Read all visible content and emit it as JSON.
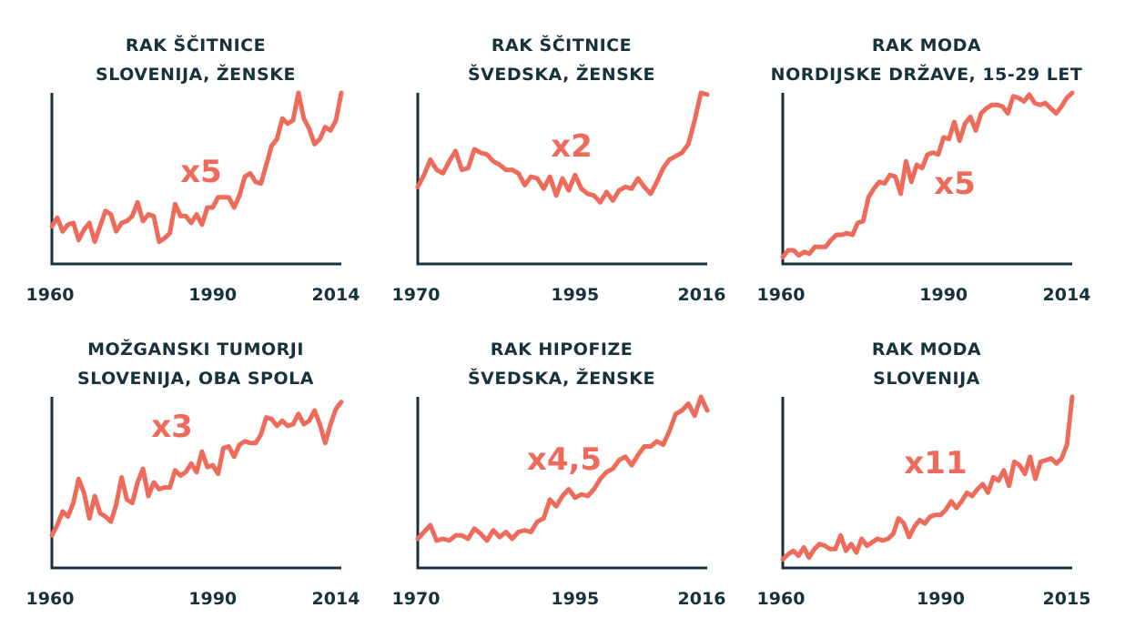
{
  "colors": {
    "line": "#ee6a5a",
    "axis": "#17323b",
    "text": "#17323b"
  },
  "chart_data": [
    {
      "type": "line",
      "title_lines": [
        "RAK ŠČITNICE",
        "SLOVENIJA, ŽENSKE"
      ],
      "xticks": [
        "1960",
        "1990",
        "2014"
      ],
      "xlim": [
        1960,
        2014
      ],
      "ylim": [
        0,
        1
      ],
      "annotation": "x5",
      "x": [
        1960,
        1961,
        1962,
        1963,
        1964,
        1965,
        1966,
        1967,
        1968,
        1969,
        1970,
        1971,
        1972,
        1973,
        1974,
        1975,
        1976,
        1977,
        1978,
        1979,
        1980,
        1981,
        1982,
        1983,
        1984,
        1985,
        1986,
        1987,
        1988,
        1989,
        1990,
        1991,
        1992,
        1993,
        1994,
        1995,
        1996,
        1997,
        1998,
        1999,
        2000,
        2001,
        2002,
        2003,
        2004,
        2005,
        2006,
        2007,
        2008,
        2009,
        2010,
        2011,
        2012,
        2013,
        2014
      ],
      "values": [
        0.22,
        0.27,
        0.19,
        0.23,
        0.24,
        0.14,
        0.2,
        0.24,
        0.13,
        0.22,
        0.31,
        0.29,
        0.19,
        0.24,
        0.25,
        0.28,
        0.36,
        0.25,
        0.29,
        0.28,
        0.13,
        0.15,
        0.18,
        0.35,
        0.28,
        0.28,
        0.24,
        0.29,
        0.23,
        0.33,
        0.33,
        0.39,
        0.39,
        0.39,
        0.33,
        0.4,
        0.51,
        0.53,
        0.48,
        0.47,
        0.58,
        0.69,
        0.73,
        0.85,
        0.82,
        0.84,
        1.0,
        0.85,
        0.79,
        0.7,
        0.73,
        0.8,
        0.78,
        0.84,
        1.0
      ]
    },
    {
      "type": "line",
      "title_lines": [
        "RAK ŠČITNICE",
        "ŠVEDSKA, ŽENSKE"
      ],
      "xticks": [
        "1970",
        "1995",
        "2016"
      ],
      "xlim": [
        1970,
        2016
      ],
      "ylim": [
        0,
        1
      ],
      "annotation": "x2",
      "x": [
        1970,
        1971,
        1972,
        1973,
        1974,
        1975,
        1976,
        1977,
        1978,
        1979,
        1980,
        1981,
        1982,
        1983,
        1984,
        1985,
        1986,
        1987,
        1988,
        1989,
        1990,
        1991,
        1992,
        1993,
        1994,
        1995,
        1996,
        1997,
        1998,
        1999,
        2000,
        2001,
        2002,
        2003,
        2004,
        2005,
        2006,
        2007,
        2008,
        2009,
        2010,
        2011,
        2012,
        2013,
        2014,
        2015,
        2016
      ],
      "values": [
        0.45,
        0.52,
        0.61,
        0.55,
        0.53,
        0.6,
        0.66,
        0.55,
        0.56,
        0.67,
        0.65,
        0.64,
        0.6,
        0.58,
        0.55,
        0.55,
        0.53,
        0.46,
        0.51,
        0.5,
        0.44,
        0.51,
        0.4,
        0.5,
        0.43,
        0.52,
        0.44,
        0.41,
        0.4,
        0.36,
        0.42,
        0.37,
        0.43,
        0.45,
        0.44,
        0.5,
        0.45,
        0.41,
        0.48,
        0.56,
        0.61,
        0.63,
        0.65,
        0.7,
        0.84,
        1.0,
        0.99
      ]
    },
    {
      "type": "line",
      "title_lines": [
        "RAK MODA",
        "NORDIJSKE DRŽAVE, 15-29 LET"
      ],
      "xticks": [
        "1960",
        "1990",
        "2014"
      ],
      "xlim": [
        1960,
        2014
      ],
      "ylim": [
        0,
        1
      ],
      "annotation": "x5",
      "x": [
        1960,
        1961,
        1962,
        1963,
        1964,
        1965,
        1966,
        1967,
        1968,
        1969,
        1970,
        1971,
        1972,
        1973,
        1974,
        1975,
        1976,
        1977,
        1978,
        1979,
        1980,
        1981,
        1982,
        1983,
        1984,
        1985,
        1986,
        1987,
        1988,
        1989,
        1990,
        1991,
        1992,
        1993,
        1994,
        1995,
        1996,
        1997,
        1998,
        1999,
        2000,
        2001,
        2002,
        2003,
        2004,
        2005,
        2006,
        2007,
        2008,
        2009,
        2010,
        2011,
        2012,
        2013,
        2014
      ],
      "values": [
        0.04,
        0.08,
        0.08,
        0.05,
        0.07,
        0.06,
        0.1,
        0.1,
        0.1,
        0.14,
        0.17,
        0.17,
        0.18,
        0.17,
        0.24,
        0.25,
        0.39,
        0.44,
        0.48,
        0.47,
        0.52,
        0.51,
        0.41,
        0.6,
        0.48,
        0.58,
        0.56,
        0.64,
        0.65,
        0.64,
        0.74,
        0.73,
        0.83,
        0.72,
        0.82,
        0.86,
        0.78,
        0.88,
        0.91,
        0.93,
        0.93,
        0.92,
        0.88,
        0.98,
        0.97,
        0.95,
        0.99,
        0.94,
        0.93,
        0.94,
        0.91,
        0.88,
        0.92,
        0.97,
        1.0
      ]
    },
    {
      "type": "line",
      "title_lines": [
        "MOŽGANSKI TUMORJI",
        "SLOVENIJA, OBA SPOLA"
      ],
      "xticks": [
        "1960",
        "1990",
        "2014"
      ],
      "xlim": [
        1960,
        2014
      ],
      "ylim": [
        0,
        1
      ],
      "annotation": "x3",
      "x": [
        1960,
        1961,
        1962,
        1963,
        1964,
        1965,
        1966,
        1967,
        1968,
        1969,
        1970,
        1971,
        1972,
        1973,
        1974,
        1975,
        1976,
        1977,
        1978,
        1979,
        1980,
        1981,
        1982,
        1983,
        1984,
        1985,
        1986,
        1987,
        1988,
        1989,
        1990,
        1991,
        1992,
        1993,
        1994,
        1995,
        1996,
        1997,
        1998,
        1999,
        2000,
        2001,
        2002,
        2003,
        2004,
        2005,
        2006,
        2007,
        2008,
        2009,
        2010,
        2011,
        2012,
        2013,
        2014
      ],
      "values": [
        0.19,
        0.25,
        0.33,
        0.3,
        0.38,
        0.52,
        0.44,
        0.29,
        0.42,
        0.32,
        0.3,
        0.27,
        0.37,
        0.53,
        0.4,
        0.38,
        0.5,
        0.58,
        0.42,
        0.5,
        0.46,
        0.47,
        0.47,
        0.57,
        0.54,
        0.56,
        0.61,
        0.56,
        0.68,
        0.59,
        0.6,
        0.55,
        0.7,
        0.71,
        0.65,
        0.72,
        0.74,
        0.73,
        0.73,
        0.78,
        0.88,
        0.87,
        0.83,
        0.86,
        0.83,
        0.84,
        0.9,
        0.84,
        0.86,
        0.92,
        0.84,
        0.73,
        0.84,
        0.93,
        0.97
      ]
    },
    {
      "type": "line",
      "title_lines": [
        "RAK HIPOFIZE",
        "ŠVEDSKA, ŽENSKE"
      ],
      "xticks": [
        "1970",
        "1995",
        "2016"
      ],
      "xlim": [
        1970,
        2016
      ],
      "ylim": [
        0,
        1
      ],
      "annotation": "x4,5",
      "x": [
        1970,
        1971,
        1972,
        1973,
        1974,
        1975,
        1976,
        1977,
        1978,
        1979,
        1980,
        1981,
        1982,
        1983,
        1984,
        1985,
        1986,
        1987,
        1988,
        1989,
        1990,
        1991,
        1992,
        1993,
        1994,
        1995,
        1996,
        1997,
        1998,
        1999,
        2000,
        2001,
        2002,
        2003,
        2004,
        2005,
        2006,
        2007,
        2008,
        2009,
        2010,
        2011,
        2012,
        2013,
        2014,
        2015,
        2016
      ],
      "values": [
        0.17,
        0.21,
        0.25,
        0.16,
        0.17,
        0.16,
        0.19,
        0.19,
        0.17,
        0.23,
        0.2,
        0.16,
        0.22,
        0.18,
        0.21,
        0.17,
        0.21,
        0.22,
        0.21,
        0.27,
        0.29,
        0.4,
        0.36,
        0.42,
        0.46,
        0.41,
        0.43,
        0.42,
        0.46,
        0.52,
        0.56,
        0.58,
        0.63,
        0.65,
        0.6,
        0.66,
        0.71,
        0.71,
        0.74,
        0.72,
        0.8,
        0.9,
        0.92,
        0.96,
        0.89,
        1.0,
        0.92
      ]
    },
    {
      "type": "line",
      "title_lines": [
        "RAK MODA",
        "SLOVENIJA"
      ],
      "xticks": [
        "1960",
        "1990",
        "2015"
      ],
      "xlim": [
        1960,
        2015
      ],
      "ylim": [
        0,
        1
      ],
      "annotation": "x11",
      "x": [
        1960,
        1961,
        1962,
        1963,
        1964,
        1965,
        1966,
        1967,
        1968,
        1969,
        1970,
        1971,
        1972,
        1973,
        1974,
        1975,
        1976,
        1977,
        1978,
        1979,
        1980,
        1981,
        1982,
        1983,
        1984,
        1985,
        1986,
        1987,
        1988,
        1989,
        1990,
        1991,
        1992,
        1993,
        1994,
        1995,
        1996,
        1997,
        1998,
        1999,
        2000,
        2001,
        2002,
        2003,
        2004,
        2005,
        2006,
        2007,
        2008,
        2009,
        2010,
        2011,
        2012,
        2013,
        2014,
        2015
      ],
      "values": [
        0.05,
        0.08,
        0.1,
        0.07,
        0.12,
        0.06,
        0.11,
        0.14,
        0.13,
        0.11,
        0.11,
        0.19,
        0.1,
        0.14,
        0.09,
        0.17,
        0.13,
        0.15,
        0.17,
        0.16,
        0.17,
        0.2,
        0.29,
        0.26,
        0.18,
        0.24,
        0.28,
        0.26,
        0.3,
        0.31,
        0.31,
        0.34,
        0.39,
        0.35,
        0.39,
        0.44,
        0.42,
        0.46,
        0.49,
        0.44,
        0.53,
        0.51,
        0.57,
        0.48,
        0.62,
        0.6,
        0.55,
        0.65,
        0.52,
        0.62,
        0.63,
        0.64,
        0.61,
        0.64,
        0.72,
        1.0
      ]
    }
  ]
}
